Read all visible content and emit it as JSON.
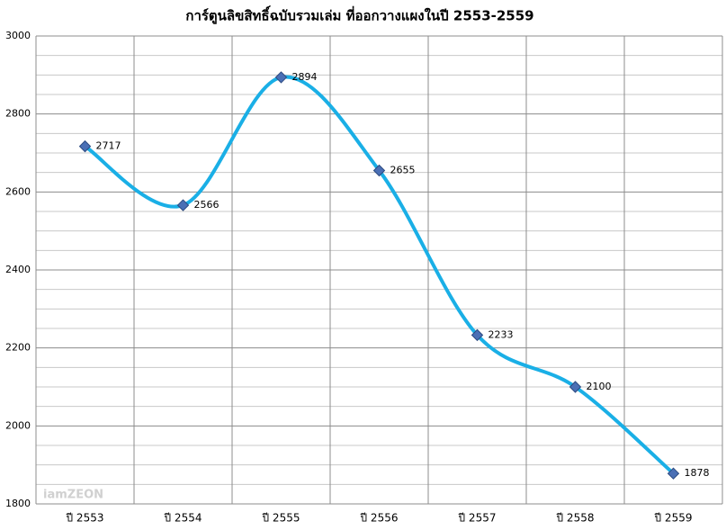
{
  "chart_data": {
    "type": "line",
    "title": "การ์ตูนลิขสิทธิ์ฉบับรวมเล่ม ที่ออกวางแผงในปี 2553-2559",
    "categories": [
      "ปี 2553",
      "ปี 2554",
      "ปี 2555",
      "ปี 2556",
      "ปี 2557",
      "ปี 2558",
      "ปี 2559"
    ],
    "values": [
      2717,
      2566,
      2894,
      2655,
      2233,
      2100,
      1878
    ],
    "color": "#1aafe6",
    "marker_color": "#4a6fb5",
    "ylim": [
      1800,
      3000
    ],
    "yticks": [
      1800,
      2000,
      2200,
      2400,
      2600,
      2800,
      3000
    ],
    "minor_yticks": [
      1850,
      1900,
      1950,
      2050,
      2100,
      2150,
      2250,
      2300,
      2350,
      2450,
      2500,
      2550,
      2650,
      2700,
      2750,
      2850,
      2900,
      2950
    ],
    "grid": true,
    "smooth": true,
    "watermark": "iamZEON"
  }
}
